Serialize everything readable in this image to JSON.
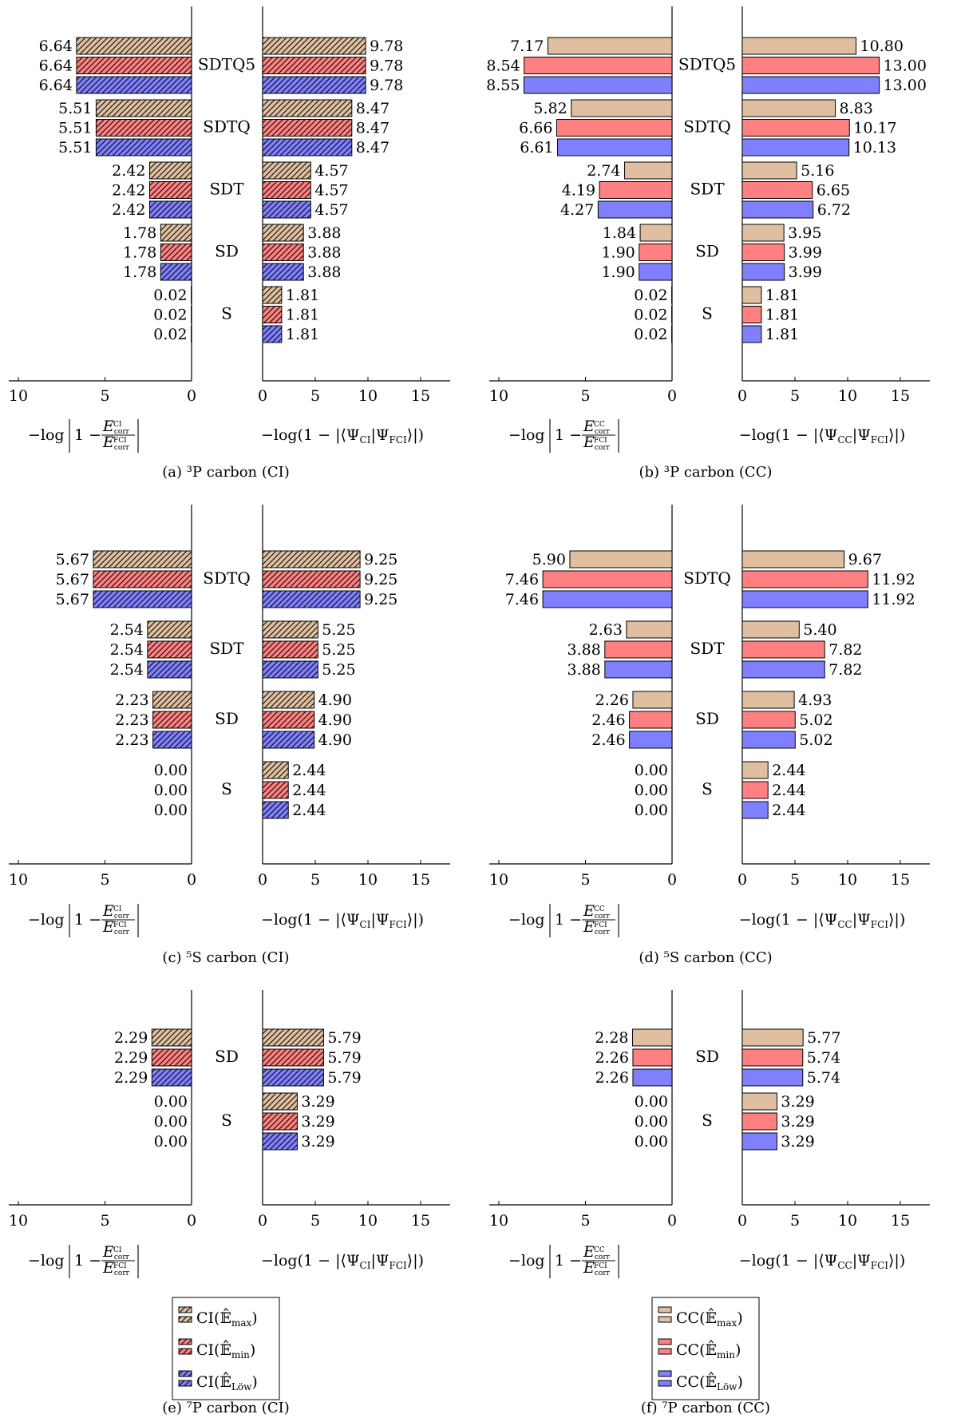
{
  "colors": {
    "max": "#dfbf9f",
    "min": "#ff8080",
    "low": "#8080ff",
    "hatch": "#000000"
  },
  "series_names_ci": [
    "CI(Ê_max)",
    "CI(Ê_min)",
    "CI(Ê_Löw)"
  ],
  "series_names_cc": [
    "CC(Ê_max)",
    "CC(Ê_min)",
    "CC(Ê_Löw)"
  ],
  "series_text": {
    "ci": {
      "pre": "CI(",
      "subs": [
        "max",
        "min",
        "Löw"
      ],
      "post": ")"
    },
    "cc": {
      "pre": "CC(",
      "subs": [
        "max",
        "min",
        "Löw"
      ],
      "post": ")"
    }
  },
  "axis_labels": {
    "ci_left": "−log|1 − E_corr^CI / E_corr^FCI|",
    "ci_right": "−log(1 − |⟨Ψ_CI|Ψ_FCI⟩|)",
    "cc_left": "−log|1 − E_corr^CC / E_corr^FCI|",
    "cc_right": "−log(1 − |⟨Ψ_CC|Ψ_FCI⟩|)"
  },
  "chart_data": [
    {
      "type": "bar",
      "panel": "a",
      "caption": "(a) ³P carbon (CI)",
      "method": "ci",
      "hatched": true,
      "categories": [
        "SDTQ5",
        "SDTQ",
        "SDT",
        "SD",
        "S"
      ],
      "left_xlim": [
        0,
        10
      ],
      "left_ticks": [
        10,
        5,
        0
      ],
      "right_xlim": [
        0,
        15
      ],
      "right_ticks": [
        0,
        5,
        10,
        15
      ],
      "left_values": [
        [
          6.64,
          6.64,
          6.64
        ],
        [
          5.51,
          5.51,
          5.51
        ],
        [
          2.42,
          2.42,
          2.42
        ],
        [
          1.78,
          1.78,
          1.78
        ],
        [
          0.02,
          0.02,
          0.02
        ]
      ],
      "right_values": [
        [
          9.78,
          9.78,
          9.78
        ],
        [
          8.47,
          8.47,
          8.47
        ],
        [
          4.57,
          4.57,
          4.57
        ],
        [
          3.88,
          3.88,
          3.88
        ],
        [
          1.81,
          1.81,
          1.81
        ]
      ]
    },
    {
      "type": "bar",
      "panel": "b",
      "caption": "(b) ³P carbon (CC)",
      "method": "cc",
      "hatched": false,
      "categories": [
        "SDTQ5",
        "SDTQ",
        "SDT",
        "SD",
        "S"
      ],
      "left_xlim": [
        0,
        10
      ],
      "left_ticks": [
        10,
        5,
        0
      ],
      "right_xlim": [
        0,
        15
      ],
      "right_ticks": [
        0,
        5,
        10,
        15
      ],
      "left_values": [
        [
          7.17,
          8.54,
          8.55
        ],
        [
          5.82,
          6.66,
          6.61
        ],
        [
          2.74,
          4.19,
          4.27
        ],
        [
          1.84,
          1.9,
          1.9
        ],
        [
          0.02,
          0.02,
          0.02
        ]
      ],
      "right_values": [
        [
          10.8,
          13.0,
          13.0
        ],
        [
          8.83,
          10.17,
          10.13
        ],
        [
          5.16,
          6.65,
          6.72
        ],
        [
          3.95,
          3.99,
          3.99
        ],
        [
          1.81,
          1.81,
          1.81
        ]
      ]
    },
    {
      "type": "bar",
      "panel": "c",
      "caption": "(c) ⁵S carbon (CI)",
      "method": "ci",
      "hatched": true,
      "categories": [
        "SDTQ",
        "SDT",
        "SD",
        "S"
      ],
      "left_xlim": [
        0,
        10
      ],
      "left_ticks": [
        10,
        5,
        0
      ],
      "right_xlim": [
        0,
        15
      ],
      "right_ticks": [
        0,
        5,
        10,
        15
      ],
      "left_values": [
        [
          5.67,
          5.67,
          5.67
        ],
        [
          2.54,
          2.54,
          2.54
        ],
        [
          2.23,
          2.23,
          2.23
        ],
        [
          0.0,
          0.0,
          0.0
        ]
      ],
      "right_values": [
        [
          9.25,
          9.25,
          9.25
        ],
        [
          5.25,
          5.25,
          5.25
        ],
        [
          4.9,
          4.9,
          4.9
        ],
        [
          2.44,
          2.44,
          2.44
        ]
      ]
    },
    {
      "type": "bar",
      "panel": "d",
      "caption": "(d) ⁵S carbon (CC)",
      "method": "cc",
      "hatched": false,
      "categories": [
        "SDTQ",
        "SDT",
        "SD",
        "S"
      ],
      "left_xlim": [
        0,
        10
      ],
      "left_ticks": [
        10,
        5,
        0
      ],
      "right_xlim": [
        0,
        15
      ],
      "right_ticks": [
        0,
        5,
        10,
        15
      ],
      "left_values": [
        [
          5.9,
          7.46,
          7.46
        ],
        [
          2.63,
          3.88,
          3.88
        ],
        [
          2.26,
          2.46,
          2.46
        ],
        [
          0.0,
          0.0,
          0.0
        ]
      ],
      "right_values": [
        [
          9.67,
          11.92,
          11.92
        ],
        [
          5.4,
          7.82,
          7.82
        ],
        [
          4.93,
          5.02,
          5.02
        ],
        [
          2.44,
          2.44,
          2.44
        ]
      ]
    },
    {
      "type": "bar",
      "panel": "e",
      "caption": "(e) ⁷P carbon (CI)",
      "method": "ci",
      "hatched": true,
      "categories": [
        "SD",
        "S"
      ],
      "left_xlim": [
        0,
        10
      ],
      "left_ticks": [
        10,
        5,
        0
      ],
      "right_xlim": [
        0,
        15
      ],
      "right_ticks": [
        0,
        5,
        10,
        15
      ],
      "left_values": [
        [
          2.29,
          2.29,
          2.29
        ],
        [
          0.0,
          0.0,
          0.0
        ]
      ],
      "right_values": [
        [
          5.79,
          5.79,
          5.79
        ],
        [
          3.29,
          3.29,
          3.29
        ]
      ]
    },
    {
      "type": "bar",
      "panel": "f",
      "caption": "(f) ⁷P carbon (CC)",
      "method": "cc",
      "hatched": false,
      "categories": [
        "SD",
        "S"
      ],
      "left_xlim": [
        0,
        10
      ],
      "left_ticks": [
        10,
        5,
        0
      ],
      "right_xlim": [
        0,
        15
      ],
      "right_ticks": [
        0,
        5,
        10,
        15
      ],
      "left_values": [
        [
          2.28,
          2.26,
          2.26
        ],
        [
          0.0,
          0.0,
          0.0
        ]
      ],
      "right_values": [
        [
          5.77,
          5.74,
          5.74
        ],
        [
          3.29,
          3.29,
          3.29
        ]
      ]
    }
  ]
}
